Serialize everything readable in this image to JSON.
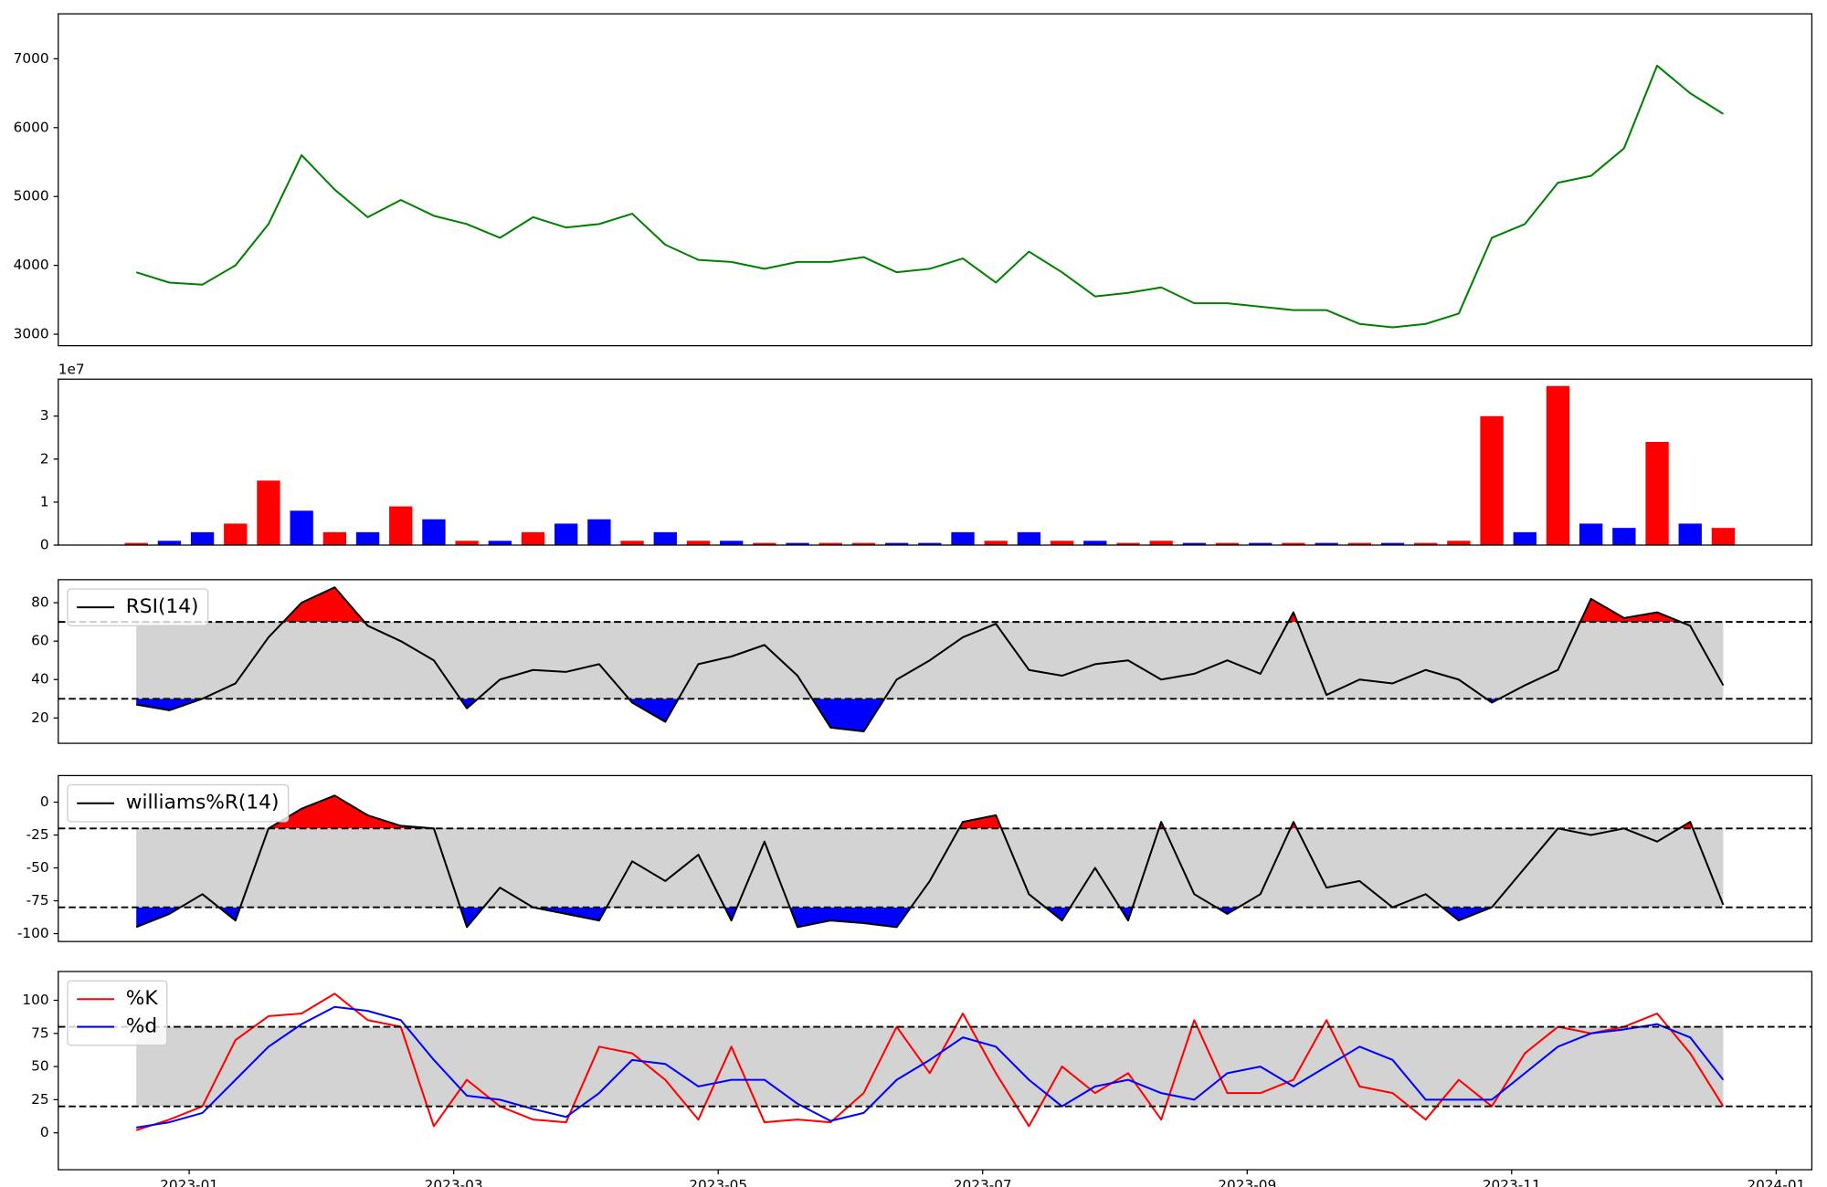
{
  "chart_data": [
    {
      "type": "line",
      "color": "green",
      "x": [
        -0.4,
        -0.15,
        0.1,
        0.35,
        0.6,
        0.85,
        1.1,
        1.35,
        1.6,
        1.85,
        2.1,
        2.35,
        2.6,
        2.85,
        3.1,
        3.35,
        3.6,
        3.85,
        4.1,
        4.35,
        4.6,
        4.85,
        5.1,
        5.35,
        5.6,
        5.85,
        6.1,
        6.35,
        6.6,
        6.85,
        7.1,
        7.35,
        7.6,
        7.85,
        8.1,
        8.35,
        8.6,
        8.85,
        9.1,
        9.35,
        9.6,
        9.85,
        10.1,
        10.35,
        10.6,
        10.85,
        11.1,
        11.35,
        11.6
      ],
      "values": [
        3900,
        3750,
        3720,
        4000,
        4600,
        5600,
        5100,
        4700,
        4950,
        4720,
        4600,
        4400,
        4700,
        4550,
        4600,
        4750,
        4300,
        4080,
        4050,
        3950,
        4050,
        4050,
        4120,
        3900,
        3950,
        4100,
        3750,
        4200,
        3900,
        3550,
        3600,
        3680,
        3450,
        3450,
        3400,
        3350,
        3350,
        3150,
        3100,
        3150,
        3300,
        4400,
        4600,
        5200,
        5300,
        5700,
        6900,
        6500,
        6200
      ],
      "xlim": [
        -0.99,
        12.27
      ],
      "ylim": [
        2833,
        7653
      ],
      "yticks": [
        3000,
        4000,
        5000,
        6000,
        7000
      ]
    },
    {
      "type": "bar",
      "offset_label": "1e7",
      "x": [
        -0.4,
        -0.15,
        0.1,
        0.35,
        0.6,
        0.85,
        1.1,
        1.35,
        1.6,
        1.85,
        2.1,
        2.35,
        2.6,
        2.85,
        3.1,
        3.35,
        3.6,
        3.85,
        4.1,
        4.35,
        4.6,
        4.85,
        5.1,
        5.35,
        5.6,
        5.85,
        6.1,
        6.35,
        6.6,
        6.85,
        7.1,
        7.35,
        7.6,
        7.85,
        8.1,
        8.35,
        8.6,
        8.85,
        9.1,
        9.35,
        9.6,
        9.85,
        10.1,
        10.35,
        10.6,
        10.85,
        11.1,
        11.35,
        11.6
      ],
      "values": [
        0.05,
        0.1,
        0.3,
        0.5,
        1.5,
        0.8,
        0.3,
        0.3,
        0.9,
        0.6,
        0.1,
        0.1,
        0.3,
        0.5,
        0.6,
        0.1,
        0.3,
        0.1,
        0.1,
        0.05,
        0.05,
        0.05,
        0.05,
        0.05,
        0.05,
        0.3,
        0.1,
        0.3,
        0.1,
        0.1,
        0.05,
        0.1,
        0.05,
        0.05,
        0.05,
        0.05,
        0.05,
        0.05,
        0.05,
        0.05,
        0.1,
        3.0,
        0.3,
        3.7,
        0.5,
        0.4,
        2.4,
        0.5,
        0.4
      ],
      "colors": [
        "red",
        "blue",
        "blue",
        "red",
        "red",
        "blue",
        "red",
        "blue",
        "red",
        "blue",
        "red",
        "blue",
        "red",
        "blue",
        "blue",
        "red",
        "blue",
        "red",
        "blue",
        "red",
        "blue",
        "red",
        "red",
        "blue",
        "blue",
        "blue",
        "red",
        "blue",
        "red",
        "blue",
        "red",
        "red",
        "blue",
        "red",
        "blue",
        "red",
        "blue",
        "red",
        "blue",
        "red",
        "red",
        "red",
        "blue",
        "red",
        "blue",
        "blue",
        "red",
        "blue",
        "red"
      ],
      "xlim": [
        -0.99,
        12.27
      ],
      "ylim": [
        0,
        3.86
      ],
      "yticks": [
        0,
        1,
        2,
        3
      ]
    },
    {
      "type": "line",
      "legend": "upper left",
      "x": [
        -0.4,
        -0.15,
        0.1,
        0.35,
        0.6,
        0.85,
        1.1,
        1.35,
        1.6,
        1.85,
        2.1,
        2.35,
        2.6,
        2.85,
        3.1,
        3.35,
        3.6,
        3.85,
        4.1,
        4.35,
        4.6,
        4.85,
        5.1,
        5.35,
        5.6,
        5.85,
        6.1,
        6.35,
        6.6,
        6.85,
        7.1,
        7.35,
        7.6,
        7.85,
        8.1,
        8.35,
        8.6,
        8.85,
        9.1,
        9.35,
        9.6,
        9.85,
        10.1,
        10.35,
        10.6,
        10.85,
        11.1,
        11.35,
        11.6
      ],
      "series": [
        {
          "name": "RSI(14)",
          "color": "black",
          "values": [
            27,
            24,
            30,
            38,
            62,
            80,
            88,
            68,
            60,
            50,
            25,
            40,
            45,
            44,
            48,
            28,
            18,
            48,
            52,
            58,
            42,
            15,
            13,
            40,
            50,
            62,
            69,
            45,
            42,
            48,
            50,
            40,
            43,
            50,
            43,
            75,
            32,
            40,
            38,
            45,
            40,
            28,
            37,
            45,
            82,
            72,
            75,
            68,
            37
          ]
        }
      ],
      "hlines": [
        30,
        70
      ],
      "band_color": "lightgray",
      "overbought_color": "red",
      "oversold_color": "blue",
      "xlim": [
        -0.99,
        12.27
      ],
      "ylim": [
        6.8,
        92
      ],
      "yticks": [
        20,
        40,
        60,
        80
      ]
    },
    {
      "type": "line",
      "legend": "upper left",
      "x": [
        -0.4,
        -0.15,
        0.1,
        0.35,
        0.6,
        0.85,
        1.1,
        1.35,
        1.6,
        1.85,
        2.1,
        2.35,
        2.6,
        2.85,
        3.1,
        3.35,
        3.6,
        3.85,
        4.1,
        4.35,
        4.6,
        4.85,
        5.1,
        5.35,
        5.6,
        5.85,
        6.1,
        6.35,
        6.6,
        6.85,
        7.1,
        7.35,
        7.6,
        7.85,
        8.1,
        8.35,
        8.6,
        8.85,
        9.1,
        9.35,
        9.6,
        9.85,
        10.1,
        10.35,
        10.6,
        10.85,
        11.1,
        11.35,
        11.6
      ],
      "series": [
        {
          "name": "williams%R(14)",
          "color": "black",
          "values": [
            -95,
            -85,
            -70,
            -90,
            -20,
            -5,
            5,
            -10,
            -18,
            -20,
            -95,
            -65,
            -80,
            -85,
            -90,
            -45,
            -60,
            -40,
            -90,
            -30,
            -95,
            -90,
            -92,
            -95,
            -60,
            -15,
            -10,
            -70,
            -90,
            -50,
            -90,
            -15,
            -70,
            -85,
            -70,
            -15,
            -65,
            -60,
            -80,
            -70,
            -90,
            -80,
            -50,
            -20,
            -25,
            -20,
            -30,
            -15,
            -78
          ]
        }
      ],
      "hlines": [
        -80,
        -20
      ],
      "band_color": "lightgray",
      "overbought_color": "red",
      "oversold_color": "blue",
      "xlim": [
        -0.99,
        12.27
      ],
      "ylim": [
        -106,
        20.2
      ],
      "yticks": [
        -100,
        -75,
        -50,
        -25,
        0
      ]
    },
    {
      "type": "line",
      "legend": "upper left",
      "x": [
        -0.4,
        -0.15,
        0.1,
        0.35,
        0.6,
        0.85,
        1.1,
        1.35,
        1.6,
        1.85,
        2.1,
        2.35,
        2.6,
        2.85,
        3.1,
        3.35,
        3.6,
        3.85,
        4.1,
        4.35,
        4.6,
        4.85,
        5.1,
        5.35,
        5.6,
        5.85,
        6.1,
        6.35,
        6.6,
        6.85,
        7.1,
        7.35,
        7.6,
        7.85,
        8.1,
        8.35,
        8.6,
        8.85,
        9.1,
        9.35,
        9.6,
        9.85,
        10.1,
        10.35,
        10.6,
        10.85,
        11.1,
        11.35,
        11.6
      ],
      "series": [
        {
          "name": "%K",
          "color": "red",
          "values": [
            2,
            10,
            20,
            70,
            88,
            90,
            105,
            85,
            80,
            5,
            40,
            20,
            10,
            8,
            65,
            60,
            40,
            10,
            65,
            8,
            10,
            8,
            30,
            80,
            45,
            90,
            45,
            5,
            50,
            30,
            45,
            10,
            85,
            30,
            30,
            40,
            85,
            35,
            30,
            10,
            40,
            20,
            60,
            80,
            75,
            80,
            90,
            60,
            20
          ]
        },
        {
          "name": "%d",
          "color": "blue",
          "values": [
            4,
            8,
            15,
            40,
            65,
            82,
            95,
            92,
            85,
            55,
            28,
            25,
            18,
            12,
            30,
            55,
            52,
            35,
            40,
            40,
            22,
            9,
            15,
            40,
            55,
            72,
            65,
            40,
            20,
            35,
            40,
            30,
            25,
            45,
            50,
            35,
            50,
            65,
            55,
            25,
            25,
            25,
            45,
            65,
            75,
            78,
            82,
            72,
            40
          ]
        }
      ],
      "hlines": [
        20,
        80
      ],
      "band_color": "lightgray",
      "xlim": [
        -0.99,
        12.27
      ],
      "ylim": [
        -27.8,
        121.7
      ],
      "yticks": [
        0,
        25,
        50,
        75,
        100
      ],
      "xticks": [
        {
          "value": 0,
          "label": "2023-01"
        },
        {
          "value": 2,
          "label": "2023-03"
        },
        {
          "value": 4,
          "label": "2023-05"
        },
        {
          "value": 6,
          "label": "2023-07"
        },
        {
          "value": 8,
          "label": "2023-09"
        },
        {
          "value": 10,
          "label": "2023-11"
        },
        {
          "value": 12,
          "label": "2024-01"
        }
      ]
    }
  ]
}
